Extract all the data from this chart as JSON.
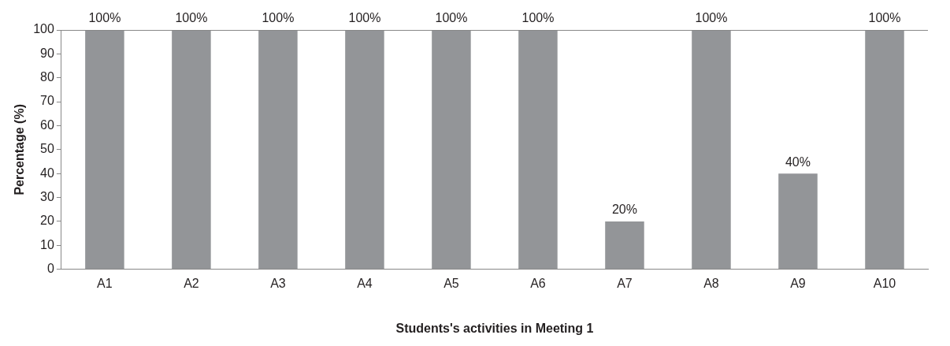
{
  "chart_data": {
    "type": "bar",
    "xlabel": "Students's activities in Meeting 1",
    "ylabel": "Percentage (%)",
    "categories": [
      "A1",
      "A2",
      "A3",
      "A4",
      "A5",
      "A6",
      "A7",
      "A8",
      "A9",
      "A10"
    ],
    "values": [
      100,
      100,
      100,
      100,
      100,
      100,
      20,
      100,
      40,
      100
    ],
    "value_labels": [
      "100%",
      "100%",
      "100%",
      "100%",
      "100%",
      "100%",
      "20%",
      "100%",
      "40%",
      "100%"
    ],
    "color": "#939598",
    "ylim": [
      0,
      100
    ],
    "yticks": [
      0,
      10,
      20,
      30,
      40,
      50,
      60,
      70,
      80,
      90,
      100
    ],
    "grid": false,
    "legend": false
  }
}
